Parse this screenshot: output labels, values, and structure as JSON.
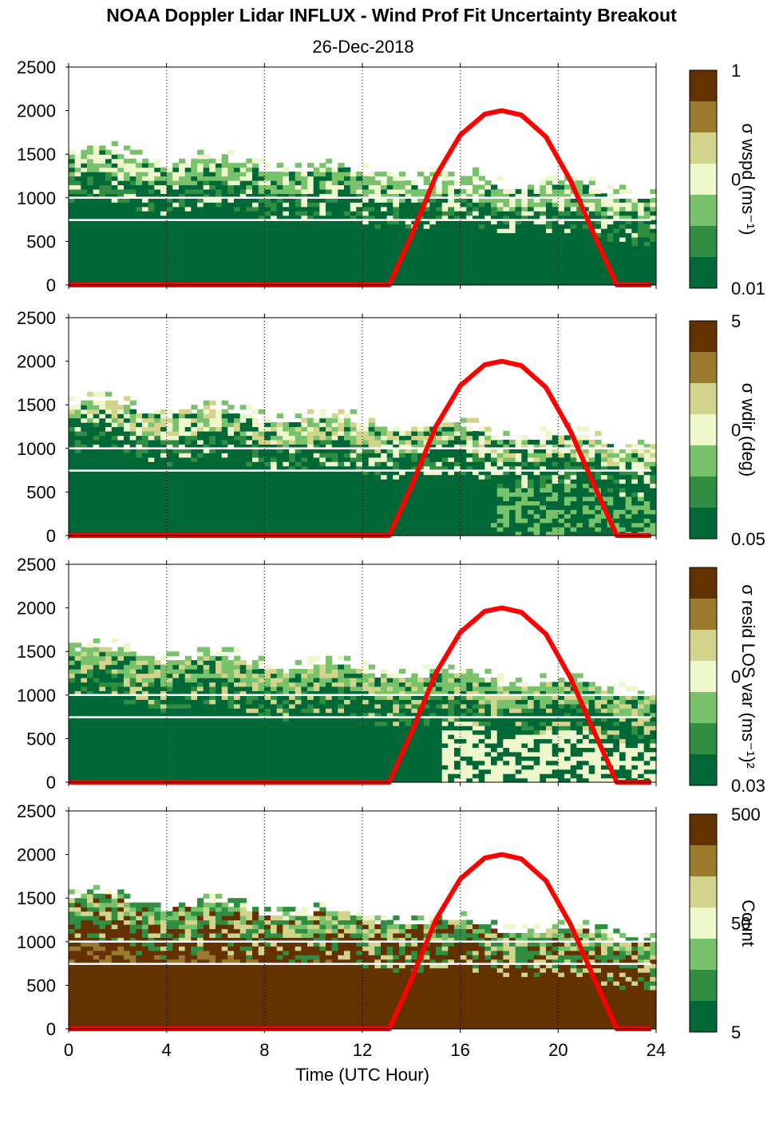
{
  "title": "NOAA Doppler Lidar INFLUX - Wind Prof Fit Uncertainty Breakout",
  "subtitle": "26-Dec-2018",
  "chart_data": {
    "type": "heatmap",
    "xlabel": "Time (UTC Hour)",
    "xlim": [
      0,
      24
    ],
    "xticks": [
      "0",
      "4",
      "8",
      "12",
      "16",
      "20",
      "24"
    ],
    "ylim": [
      0,
      2500
    ],
    "yticks": [
      "0",
      "500",
      "1000",
      "1500",
      "2000",
      "2500"
    ],
    "grid": "vertical dotted lines at 4, 8, 12, 16, 20, 24",
    "overlay_series": {
      "color": "#ff0000",
      "points": [
        [
          0,
          0
        ],
        [
          13.1,
          0
        ],
        [
          14,
          560
        ],
        [
          15,
          1250
        ],
        [
          16,
          1720
        ],
        [
          17,
          1960
        ],
        [
          17.7,
          2000
        ],
        [
          18.5,
          1950
        ],
        [
          19.5,
          1700
        ],
        [
          20.5,
          1200
        ],
        [
          21.5,
          560
        ],
        [
          22.4,
          0
        ],
        [
          23.8,
          0
        ]
      ]
    },
    "panels": [
      {
        "colorbar_label": "σ wspd (ms⁻¹)",
        "colorbar_ticks": [
          "1",
          "0",
          "0.01"
        ],
        "colors": [
          "#643200",
          "#9a7a2d",
          "#d2d48b",
          "#eef7cc",
          "#78c26c",
          "#2f8e41",
          "#006837"
        ],
        "fields": {
          "base": 6,
          "top": 4,
          "noise": 3,
          "scatter": 1
        }
      },
      {
        "colorbar_label": "σ wdir (deg)",
        "colorbar_ticks": [
          "5",
          "0",
          "0.05"
        ],
        "colors": [
          "#643200",
          "#9a7a2d",
          "#d2d48b",
          "#eef7cc",
          "#78c26c",
          "#2f8e41",
          "#006837"
        ],
        "fields": {
          "base": 6,
          "top": 2,
          "noise": 3,
          "scatter": 0
        }
      },
      {
        "colorbar_label": "σ resid LOS var (ms⁻¹)²",
        "colorbar_ticks": [
          "0",
          "0.03"
        ],
        "colors": [
          "#643200",
          "#9a7a2d",
          "#d2d48b",
          "#eef7cc",
          "#78c26c",
          "#2f8e41",
          "#006837"
        ],
        "fields": {
          "base": 6,
          "top": 4,
          "noise": 2,
          "scatter": 1
        }
      },
      {
        "colorbar_label": "Count",
        "colorbar_ticks": [
          "500",
          "50",
          "5"
        ],
        "colors": [
          "#643200",
          "#9a7a2d",
          "#d2d48b",
          "#eef7cc",
          "#78c26c",
          "#2f8e41",
          "#006837"
        ],
        "fields": {
          "base": 0,
          "top": 5,
          "noise": 2,
          "scatter": 4
        }
      }
    ]
  }
}
